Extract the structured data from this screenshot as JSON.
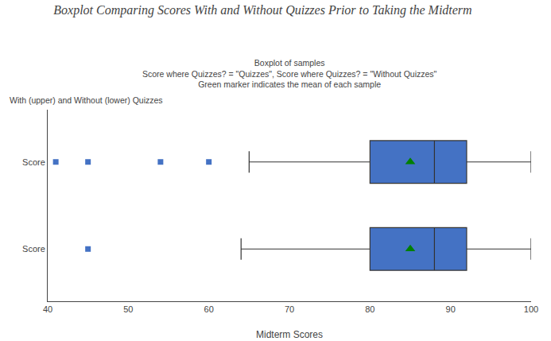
{
  "chart_data": {
    "type": "box",
    "orientation": "horizontal",
    "title": "Boxplot Comparing Scores With and Without Quizzes Prior to Taking the Midterm",
    "plot_title": "Boxplot of samples",
    "subtitle": "Score where Quizzes? = \"Quizzes\", Score where Quizzes? = \"Without Quizzes\"\nGreen marker indicates the mean of each sample",
    "ylabel": "With (upper) and Without (lower) Quizzes",
    "xlabel": "Midterm Scores",
    "categories": [
      "Score",
      "Score"
    ],
    "series": [
      {
        "type": "box",
        "color": "#4472C4",
        "marker": "square",
        "whisker_low": [
          64,
          65
        ],
        "q1": [
          80,
          80
        ],
        "median": [
          88,
          88
        ],
        "q3": [
          92,
          92
        ],
        "whisker_high": [
          100,
          100
        ],
        "outliers": [
          [
            45
          ],
          [
            41,
            45,
            54,
            60
          ]
        ]
      },
      {
        "type": "scatter",
        "color": "green",
        "marker": "triangle-up",
        "values": [
          85,
          85
        ]
      }
    ],
    "xlim": [
      40,
      100
    ],
    "xticks": [
      40,
      50,
      60,
      70,
      80,
      90,
      100
    ],
    "grid": false
  }
}
